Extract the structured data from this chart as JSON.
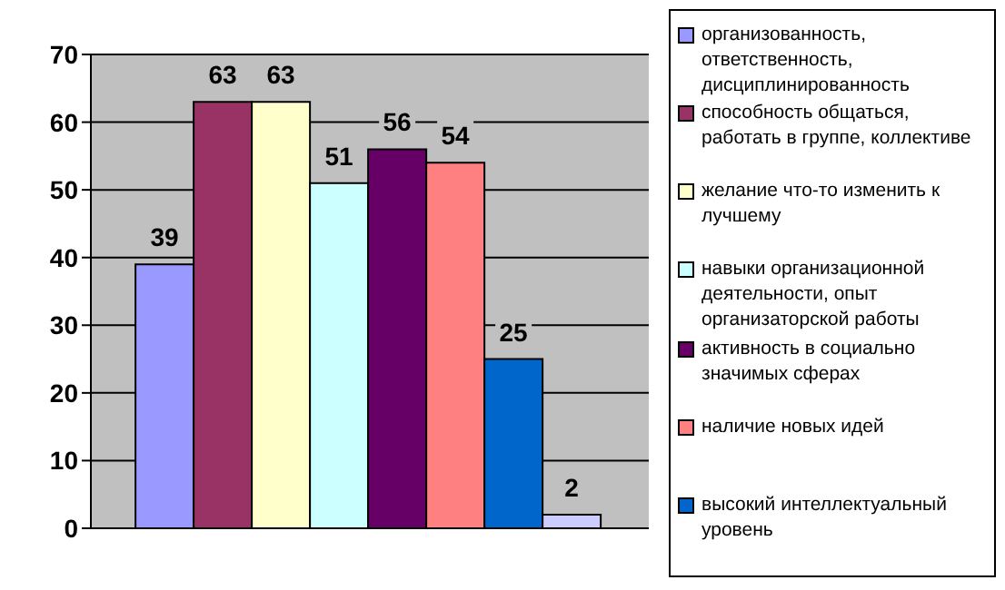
{
  "chart_data": {
    "type": "bar",
    "categories": [
      null
    ],
    "series": [
      {
        "name": "организованность, ответственность, дисциплинированность",
        "color": "#9999ff",
        "values": [
          39
        ]
      },
      {
        "name": "способность общаться, работать в группе, коллективе",
        "color": "#993366",
        "values": [
          63
        ]
      },
      {
        "name": "желание что-то изменить к лучшему",
        "color": "#ffffcc",
        "values": [
          63
        ]
      },
      {
        "name": "навыки организационной деятельности, опыт организаторской работы",
        "color": "#ccffff",
        "values": [
          51
        ]
      },
      {
        "name": "активность в социально значимых сферах",
        "color": "#660066",
        "values": [
          56
        ]
      },
      {
        "name": "наличие новых идей",
        "color": "#ff8080",
        "values": [
          54
        ]
      },
      {
        "name": "высокий интеллектуальный уровень",
        "color": "#0066cc",
        "values": [
          25
        ]
      },
      {
        "color": "#ccccff",
        "values": [
          2
        ]
      }
    ],
    "ylim": [
      0,
      70
    ],
    "yticks": [
      0,
      10,
      20,
      30,
      40,
      50,
      60,
      70
    ],
    "grid": "y",
    "legend": "right",
    "data_labels": true
  }
}
